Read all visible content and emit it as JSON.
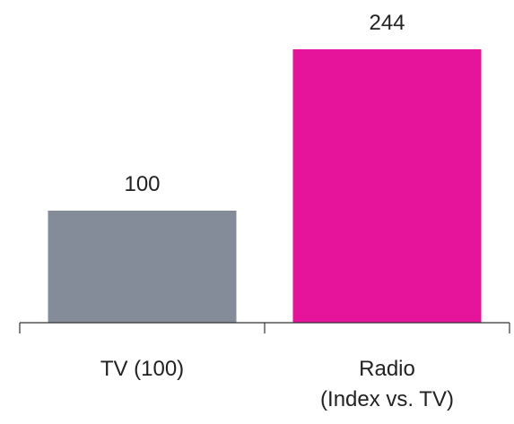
{
  "chart_data": {
    "type": "bar",
    "categories": [
      "TV (100)",
      "Radio\n(Index vs. TV)"
    ],
    "values": [
      100,
      244
    ],
    "colors": [
      "#848c99",
      "#e6149a"
    ],
    "ylim": [
      0,
      250
    ]
  }
}
